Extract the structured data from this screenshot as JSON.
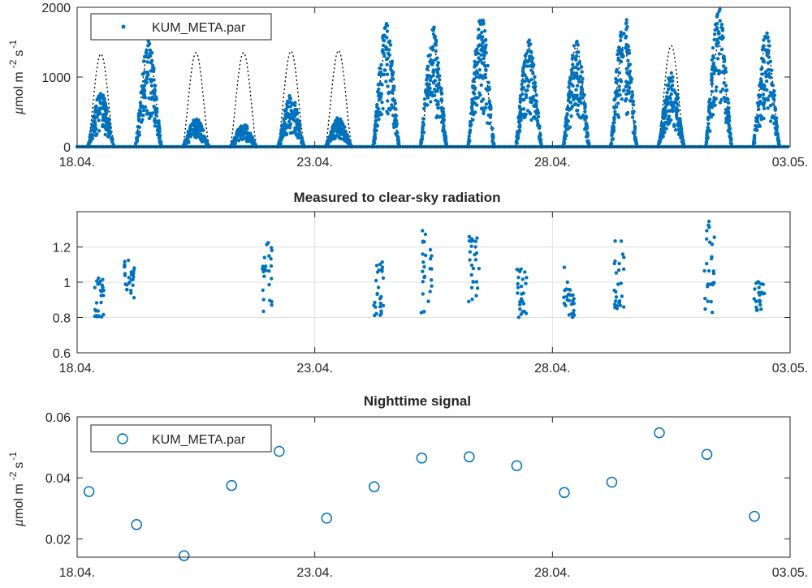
{
  "colors": {
    "series": "#0072BD",
    "clearsky": "#000000",
    "axis": "#262626",
    "grid": "#dfdfdf"
  },
  "x_ticks": [
    "18.04.",
    "23.04.",
    "28.04.",
    "03.05."
  ],
  "chart_data": [
    {
      "type": "scatter",
      "title": "",
      "xlabel": "",
      "ylabel": "µmol m -2 s -1",
      "ylabel_parts": {
        "mu": "µ",
        "unit": "mol m",
        "exp1": "-2",
        "s": "s",
        "exp2": "-1"
      },
      "xlim_days": [
        0,
        15
      ],
      "ylim": [
        0,
        2000
      ],
      "yticks": [
        0,
        1000,
        2000
      ],
      "grid": false,
      "legend": {
        "placement": "top-left",
        "entries": [
          "KUM_META.par"
        ]
      },
      "series": [
        {
          "name": "KUM_META.par",
          "style": "dots",
          "daily_peaks": [
            780,
            1520,
            420,
            330,
            760,
            420,
            1770,
            1720,
            1900,
            1540,
            1520,
            1980,
            1060,
            2000,
            1640
          ]
        },
        {
          "style": "dotted-line",
          "clear_sky_daily_peaks": [
            1330,
            1340,
            1350,
            1350,
            1370,
            1380,
            1390,
            1400,
            1410,
            1420,
            1430,
            1440,
            1450,
            1460,
            1470
          ]
        }
      ]
    },
    {
      "type": "scatter",
      "title": "Measured to clear-sky radiation",
      "xlabel": "",
      "ylabel": "",
      "xlim_days": [
        0,
        15
      ],
      "ylim": [
        0.6,
        1.4
      ],
      "yticks": [
        0.6,
        0.8,
        1,
        1.2
      ],
      "ytick_labels": [
        "0.6",
        "0.8",
        "1",
        "1.2"
      ],
      "grid": true,
      "series": [
        {
          "name": "",
          "clusters": [
            {
              "day": 0.45,
              "min": 0.8,
              "max": 1.05
            },
            {
              "day": 1.1,
              "min": 0.91,
              "max": 1.14
            },
            {
              "day": 4.0,
              "min": 0.82,
              "max": 1.24
            },
            {
              "day": 6.35,
              "min": 0.81,
              "max": 1.12
            },
            {
              "day": 7.35,
              "min": 0.81,
              "max": 1.3
            },
            {
              "day": 8.35,
              "min": 0.86,
              "max": 1.26
            },
            {
              "day": 9.35,
              "min": 0.8,
              "max": 1.08
            },
            {
              "day": 10.35,
              "min": 0.8,
              "max": 1.09
            },
            {
              "day": 11.4,
              "min": 0.85,
              "max": 1.24
            },
            {
              "day": 13.3,
              "min": 0.8,
              "max": 1.35
            },
            {
              "day": 14.35,
              "min": 0.84,
              "max": 1.01
            }
          ]
        }
      ]
    },
    {
      "type": "scatter",
      "title": "Nighttime signal",
      "xlabel": "",
      "ylabel": "µmol m -2 s -1",
      "ylabel_parts": {
        "mu": "µ",
        "unit": "mol m",
        "exp1": "-2",
        "s": "s",
        "exp2": "-1"
      },
      "xlim_days": [
        0,
        15
      ],
      "ylim": [
        0.014,
        0.06
      ],
      "yticks": [
        0.02,
        0.04,
        0.06
      ],
      "ytick_labels": [
        "0.02",
        "0.04",
        "0.06"
      ],
      "grid": false,
      "legend": {
        "placement": "top-left",
        "entries": [
          "KUM_META.par"
        ]
      },
      "series": [
        {
          "name": "KUM_META.par",
          "style": "open-circles",
          "x_days": [
            0.25,
            1.25,
            2.25,
            3.25,
            4.25,
            5.25,
            6.25,
            7.25,
            8.25,
            9.25,
            10.25,
            11.25,
            12.25,
            13.25,
            14.25
          ],
          "values": [
            0.0355,
            0.0247,
            0.0145,
            0.0375,
            0.0487,
            0.0268,
            0.0371,
            0.0465,
            0.0469,
            0.044,
            0.0352,
            0.0386,
            0.0548,
            0.0477,
            0.0274
          ]
        }
      ]
    }
  ]
}
